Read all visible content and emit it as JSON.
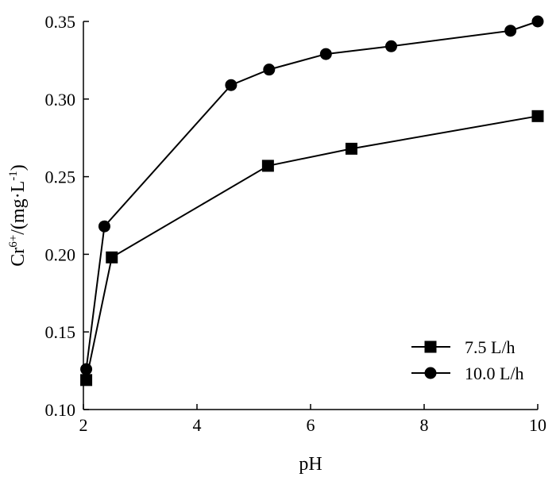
{
  "chart_data": {
    "type": "line",
    "title": "",
    "xlabel": "pH",
    "ylabel": "Cr6+/(mg·L-1)",
    "ylabel_parts": {
      "base": "Cr",
      "superscript": "6+",
      "middle": "/(mg·L",
      "unit_superscript": "-1",
      "end": ")"
    },
    "xlim": [
      2,
      10
    ],
    "ylim": [
      0.1,
      0.35
    ],
    "xticks": [
      2,
      4,
      6,
      8,
      10
    ],
    "xtick_labels": [
      "2",
      "4",
      "6",
      "8",
      "10"
    ],
    "yticks": [
      0.1,
      0.15,
      0.2,
      0.25,
      0.3,
      0.35
    ],
    "ytick_labels": [
      "0.10",
      "0.15",
      "0.20",
      "0.25",
      "0.30",
      "0.35"
    ],
    "grid": false,
    "legend_position": "bottom-right",
    "series": [
      {
        "name": "7.5 L/h",
        "marker": "square",
        "color": "#000000",
        "x": [
          2.05,
          2.5,
          5.25,
          6.72,
          10.0
        ],
        "y": [
          0.119,
          0.198,
          0.257,
          0.268,
          0.289
        ]
      },
      {
        "name": "10.0 L/h",
        "marker": "circle",
        "color": "#000000",
        "x": [
          2.05,
          2.37,
          4.6,
          5.27,
          6.27,
          7.42,
          9.52,
          10.0
        ],
        "y": [
          0.126,
          0.218,
          0.309,
          0.319,
          0.329,
          0.334,
          0.344,
          0.35
        ]
      }
    ]
  }
}
